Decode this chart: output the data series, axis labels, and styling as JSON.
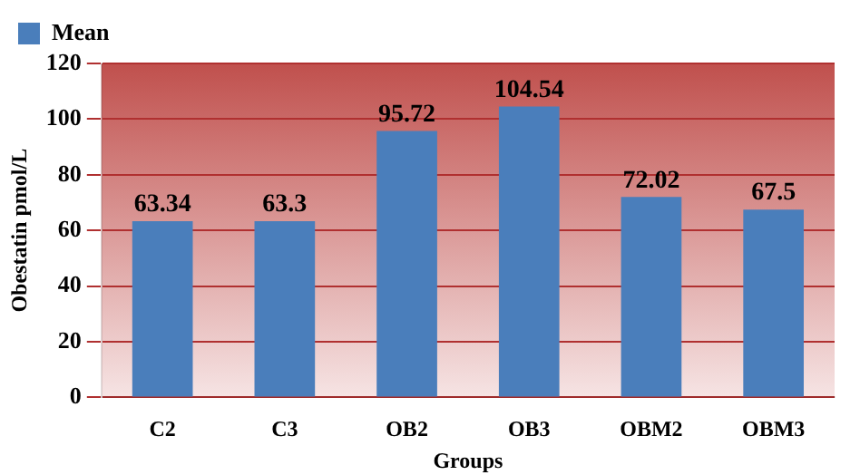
{
  "chart_data": {
    "type": "bar",
    "xlabel": "Groups",
    "ylabel": "Obestatin pmol/L",
    "categories": [
      "C2",
      "C3",
      "OB2",
      "OB3",
      "OBM2",
      "OBM3"
    ],
    "series": [
      {
        "name": "Mean",
        "color": "#4a7ebb",
        "values": [
          63.34,
          63.3,
          95.72,
          104.54,
          72.02,
          67.5
        ]
      }
    ],
    "ylim": [
      0,
      120
    ],
    "yticks": [
      0,
      20,
      40,
      60,
      80,
      100,
      120
    ],
    "grid": "y",
    "legend": "top left",
    "data_labels": true
  }
}
